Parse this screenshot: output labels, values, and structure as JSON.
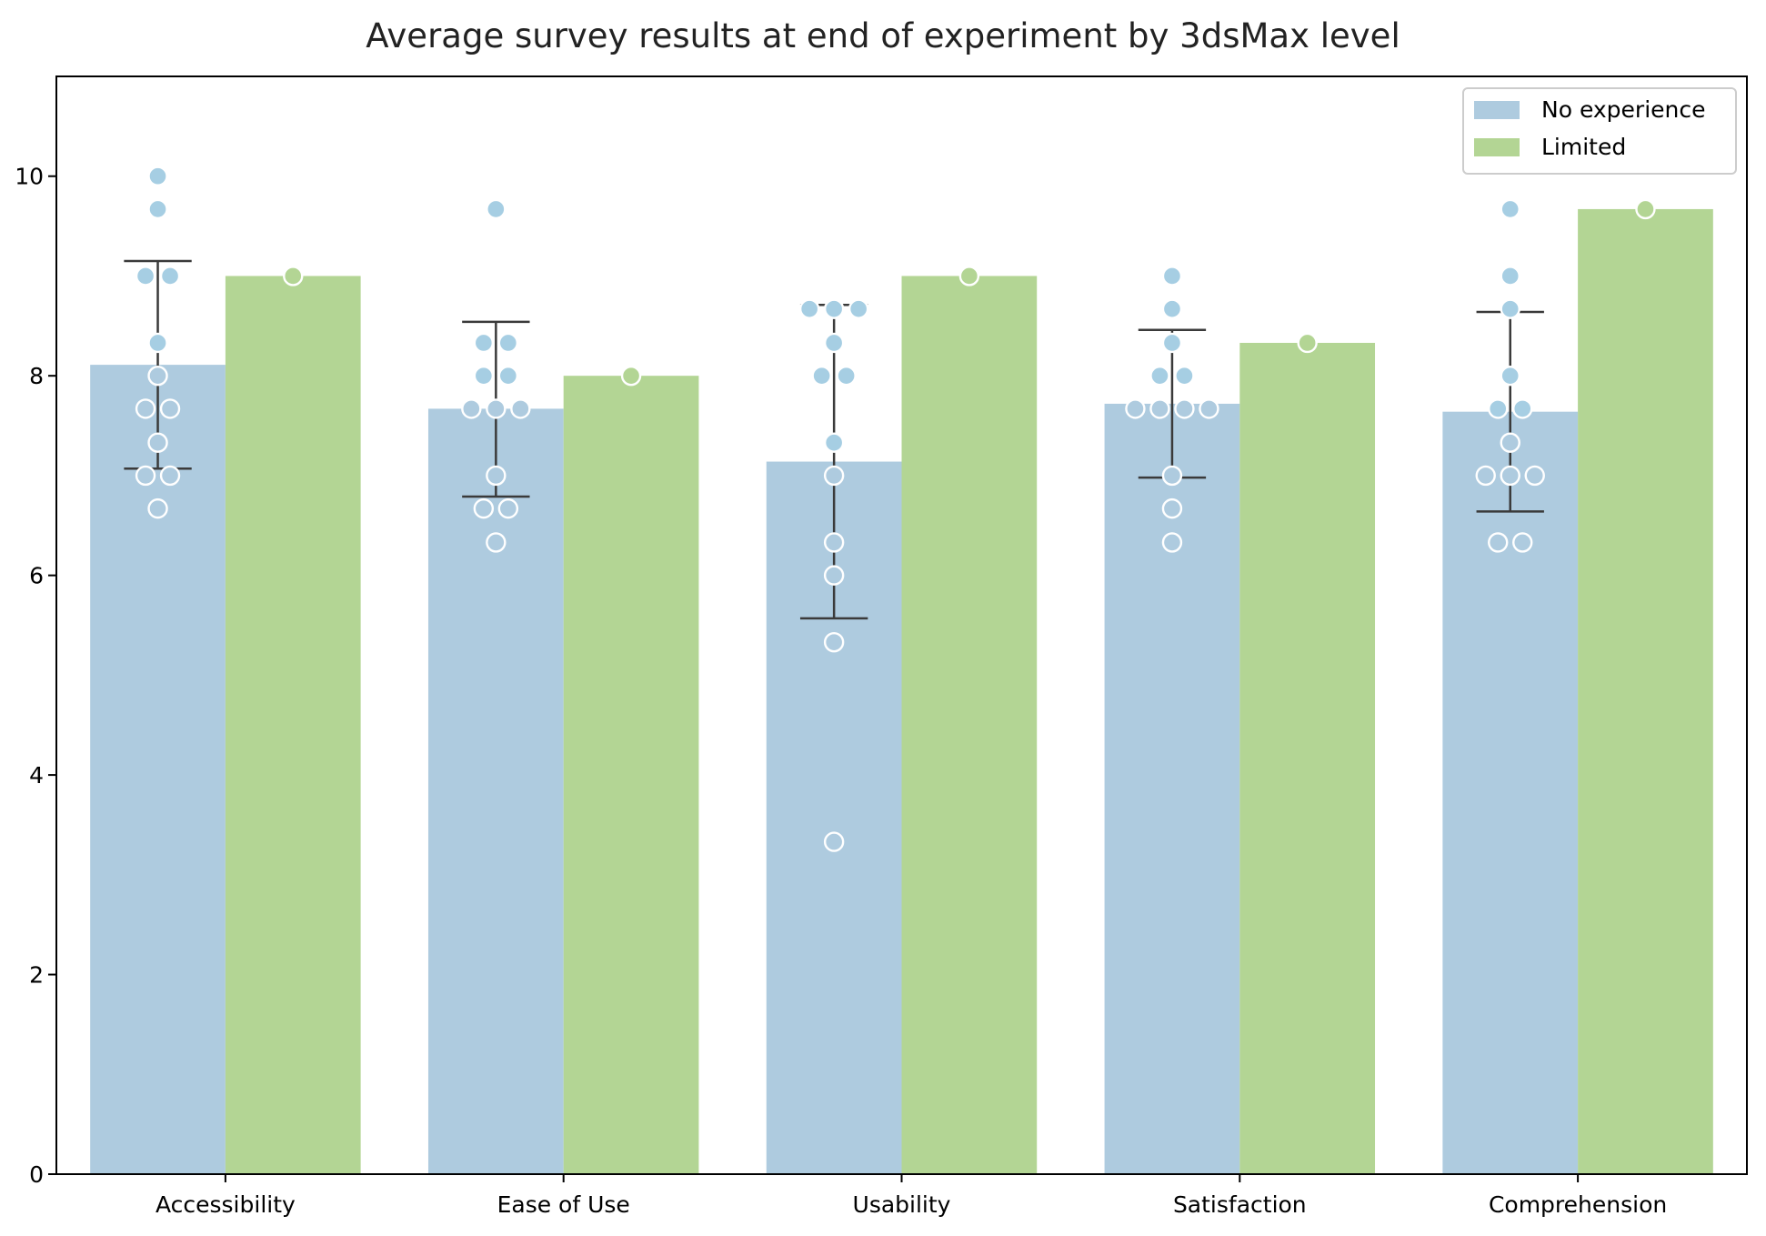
{
  "chart_data": {
    "type": "bar",
    "title": "Average survey results at end of experiment by 3dsMax level",
    "xlabel": "",
    "ylabel": "",
    "categories": [
      "Accessibility",
      "Ease of Use",
      "Usability",
      "Satisfaction",
      "Comprehension"
    ],
    "ylim": [
      0,
      11
    ],
    "yticks": [
      0,
      2,
      4,
      6,
      8,
      10
    ],
    "grid": false,
    "legend_position": "top-right",
    "series": [
      {
        "name": "No experience",
        "color": "#aecbdf",
        "point_color": "#a6cee3",
        "values": [
          8.11,
          7.67,
          7.14,
          7.72,
          7.64
        ],
        "error_low": [
          7.07,
          6.79,
          5.57,
          6.98,
          6.64
        ],
        "error_high": [
          9.15,
          8.54,
          8.71,
          8.46,
          8.64
        ],
        "points": [
          [
            10,
            9.67,
            9,
            9,
            8.33,
            8,
            7.67,
            7.67,
            7.33,
            7,
            7,
            6.67
          ],
          [
            9.67,
            8.33,
            8.33,
            8,
            8,
            7.67,
            7.67,
            7.67,
            7,
            6.67,
            6.67,
            6.33
          ],
          [
            8.67,
            8.67,
            8.67,
            8.33,
            8,
            8,
            7.33,
            7,
            6.33,
            6,
            5.33,
            3.33
          ],
          [
            9,
            8.67,
            8.33,
            8,
            8,
            7.67,
            7.67,
            7.67,
            7.67,
            7,
            6.67,
            6.33
          ],
          [
            9.67,
            9,
            8.67,
            8,
            7.67,
            7.67,
            7.33,
            7,
            7,
            7,
            6.33,
            6.33
          ]
        ]
      },
      {
        "name": "Limited",
        "color": "#b3d594",
        "point_color": "#b2df8a",
        "values": [
          9,
          8,
          9,
          8.33,
          9.67
        ],
        "points": [
          [
            9
          ],
          [
            8
          ],
          [
            9
          ],
          [
            8.33
          ],
          [
            9.67
          ]
        ]
      }
    ]
  }
}
